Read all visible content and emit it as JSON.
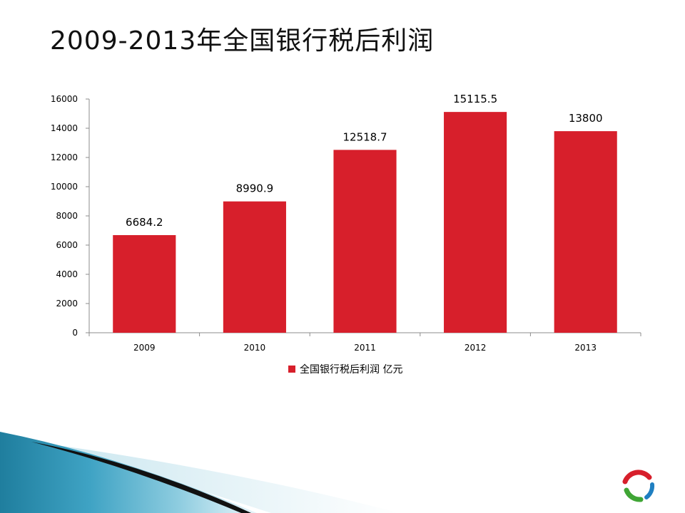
{
  "slide": {
    "title": "2009-2013年全国银行税后利润"
  },
  "chart_data": {
    "type": "bar",
    "categories": [
      "2009",
      "2010",
      "2011",
      "2012",
      "2013"
    ],
    "series": [
      {
        "name": "全国银行税后利润 亿元",
        "values": [
          6684.2,
          8990.9,
          12518.7,
          15115.5,
          13800
        ],
        "color": "#d71f2b"
      }
    ],
    "data_labels": [
      "6684.2",
      "8990.9",
      "12518.7",
      "15115.5",
      "13800"
    ],
    "y_ticks": [
      0,
      2000,
      4000,
      6000,
      8000,
      10000,
      12000,
      14000,
      16000
    ],
    "ylim": [
      0,
      16000
    ],
    "legend_position": "bottom",
    "grid": false
  },
  "theme": {
    "accent": "#d71f2b",
    "decor_blue": "#2a8fb0",
    "decor_dark": "#111111",
    "logo_colors": [
      "#d71f2b",
      "#3fa535",
      "#1f7fc1"
    ]
  }
}
